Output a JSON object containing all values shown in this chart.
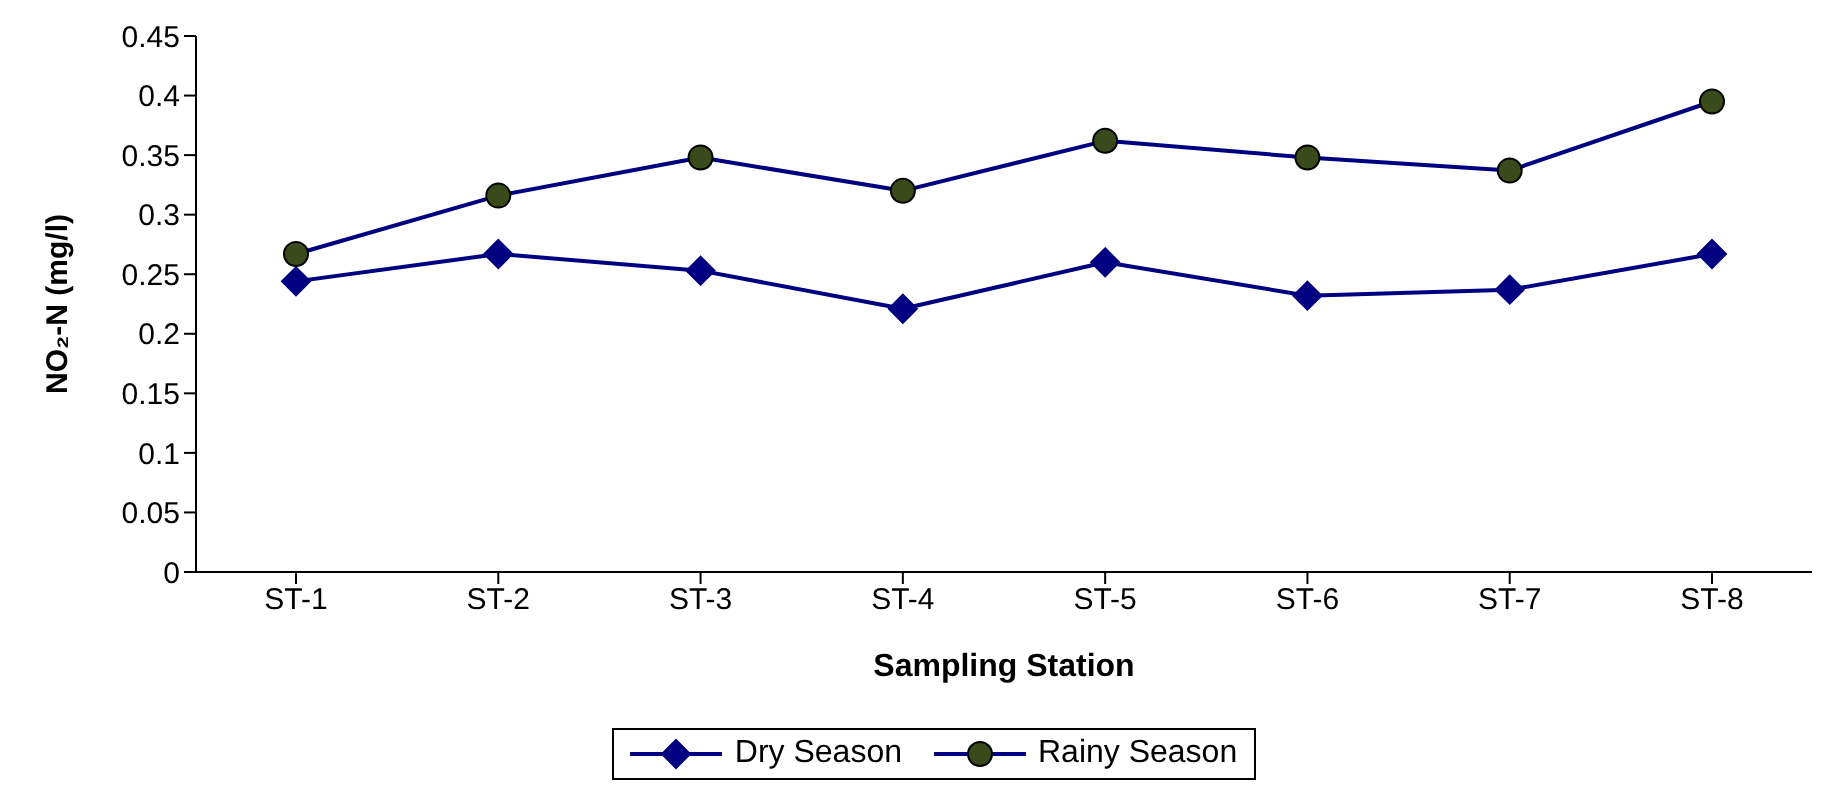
{
  "chart_data": {
    "type": "line",
    "xlabel": "Sampling Station",
    "ylabel": "NO₂-N (mg/l)",
    "categories": [
      "ST-1",
      "ST-2",
      "ST-3",
      "ST-4",
      "ST-5",
      "ST-6",
      "ST-7",
      "ST-8"
    ],
    "series": [
      {
        "name": "Dry Season",
        "color": "#000080",
        "marker": "diamond",
        "values": [
          0.244,
          0.267,
          0.253,
          0.221,
          0.26,
          0.232,
          0.237,
          0.267
        ]
      },
      {
        "name": "Rainy Season",
        "color": "#000080",
        "marker": "circle",
        "values": [
          0.267,
          0.316,
          0.348,
          0.32,
          0.362,
          0.348,
          0.337,
          0.395
        ]
      }
    ],
    "ylim": [
      0,
      0.45
    ],
    "yticks": [
      0,
      0.05,
      0.1,
      0.15,
      0.2,
      0.25,
      0.3,
      0.35,
      0.4,
      0.45
    ],
    "grid": false,
    "legend": "bottom"
  }
}
